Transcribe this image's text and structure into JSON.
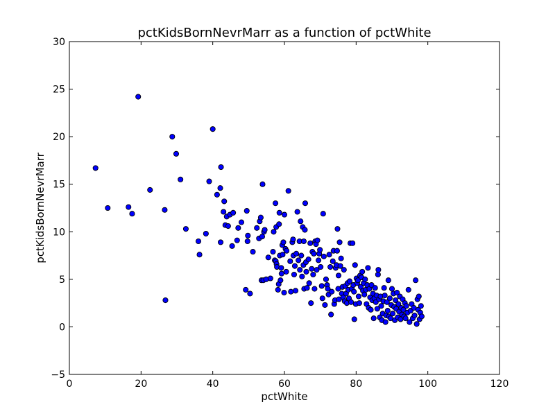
{
  "chart_data": {
    "type": "scatter",
    "title": "pctKidsBornNevrMarr as a function of pctWhite",
    "xlabel": "pctWhite",
    "ylabel": "pctKidsBornNevrMarr",
    "xlim": [
      0,
      120
    ],
    "ylim": [
      -5,
      30
    ],
    "xticks": [
      0,
      20,
      40,
      60,
      80,
      100,
      120
    ],
    "xtick_labels": [
      "0",
      "20",
      "40",
      "60",
      "80",
      "100",
      "120"
    ],
    "yticks": [
      -5,
      0,
      5,
      10,
      15,
      20,
      25,
      30
    ],
    "ytick_labels": [
      "−5",
      "0",
      "5",
      "10",
      "15",
      "20",
      "25",
      "30"
    ],
    "grid": false,
    "marker_color": "#0000ff",
    "marker_edge_color": "#000000",
    "series": [
      {
        "name": "pctKidsBornNevrMarr",
        "points": [
          [
            7.3,
            16.7
          ],
          [
            10.7,
            12.5
          ],
          [
            16.5,
            12.6
          ],
          [
            17.5,
            11.9
          ],
          [
            19.2,
            24.2
          ],
          [
            22.5,
            14.4
          ],
          [
            26.6,
            12.3
          ],
          [
            26.8,
            2.8
          ],
          [
            28.7,
            20.0
          ],
          [
            29.8,
            18.2
          ],
          [
            31.0,
            15.5
          ],
          [
            32.5,
            10.3
          ],
          [
            36.0,
            9.0
          ],
          [
            36.3,
            7.6
          ],
          [
            38.1,
            9.8
          ],
          [
            39.0,
            15.3
          ],
          [
            40.0,
            20.8
          ],
          [
            41.2,
            13.9
          ],
          [
            42.1,
            14.6
          ],
          [
            42.3,
            16.8
          ],
          [
            42.2,
            8.9
          ],
          [
            43.0,
            12.1
          ],
          [
            43.2,
            13.2
          ],
          [
            43.5,
            10.7
          ],
          [
            43.9,
            11.6
          ],
          [
            44.3,
            10.6
          ],
          [
            44.8,
            11.8
          ],
          [
            45.4,
            8.5
          ],
          [
            45.7,
            12.0
          ],
          [
            46.8,
            9.1
          ],
          [
            47.1,
            10.4
          ],
          [
            48.0,
            11.0
          ],
          [
            49.2,
            3.9
          ],
          [
            49.5,
            12.2
          ],
          [
            49.8,
            9.6
          ],
          [
            49.7,
            9.0
          ],
          [
            50.4,
            3.5
          ],
          [
            51.2,
            7.9
          ],
          [
            52.3,
            10.4
          ],
          [
            52.9,
            9.3
          ],
          [
            53.1,
            11.1
          ],
          [
            53.4,
            11.5
          ],
          [
            53.6,
            4.9
          ],
          [
            53.8,
            9.5
          ],
          [
            53.9,
            15.0
          ],
          [
            54.3,
            10.0
          ],
          [
            54.5,
            10.2
          ],
          [
            54.1,
            4.9
          ],
          [
            54.9,
            5.0
          ],
          [
            55.5,
            7.3
          ],
          [
            56.1,
            5.1
          ],
          [
            56.8,
            7.9
          ],
          [
            57.0,
            10.0
          ],
          [
            57.3,
            7.0
          ],
          [
            57.5,
            13.0
          ],
          [
            57.6,
            6.9
          ],
          [
            57.8,
            6.6
          ],
          [
            57.9,
            6.3
          ],
          [
            57.7,
            10.5
          ],
          [
            58.2,
            3.9
          ],
          [
            58.5,
            10.8
          ],
          [
            58.4,
            4.5
          ],
          [
            58.6,
            12.0
          ],
          [
            58.7,
            7.5
          ],
          [
            58.9,
            4.9
          ],
          [
            59.1,
            6.2
          ],
          [
            59.2,
            5.6
          ],
          [
            59.4,
            8.6
          ],
          [
            59.5,
            7.6
          ],
          [
            59.7,
            8.9
          ],
          [
            59.9,
            3.6
          ],
          [
            60.0,
            11.8
          ],
          [
            60.3,
            8.2
          ],
          [
            60.5,
            5.8
          ],
          [
            60.6,
            8.0
          ],
          [
            61.1,
            14.3
          ],
          [
            61.6,
            6.9
          ],
          [
            61.8,
            3.7
          ],
          [
            62.2,
            8.9
          ],
          [
            62.4,
            9.2
          ],
          [
            62.5,
            7.5
          ],
          [
            62.7,
            5.5
          ],
          [
            62.9,
            6.4
          ],
          [
            63.1,
            3.8
          ],
          [
            63.3,
            7.7
          ],
          [
            63.6,
            12.1
          ],
          [
            63.9,
            7.0
          ],
          [
            64.2,
            9.0
          ],
          [
            64.3,
            6.0
          ],
          [
            64.5,
            11.1
          ],
          [
            64.7,
            7.5
          ],
          [
            64.9,
            5.3
          ],
          [
            65.1,
            10.5
          ],
          [
            65.3,
            6.5
          ],
          [
            65.4,
            9.0
          ],
          [
            65.5,
            4.0
          ],
          [
            65.7,
            10.2
          ],
          [
            65.8,
            13.0
          ],
          [
            66.0,
            6.8
          ],
          [
            66.1,
            5.8
          ],
          [
            66.3,
            4.1
          ],
          [
            66.7,
            7.1
          ],
          [
            66.9,
            4.6
          ],
          [
            67.2,
            8.8
          ],
          [
            67.4,
            2.5
          ],
          [
            67.6,
            6.1
          ],
          [
            67.8,
            7.9
          ],
          [
            68.0,
            5.5
          ],
          [
            68.2,
            7.7
          ],
          [
            68.4,
            4.0
          ],
          [
            68.6,
            9.0
          ],
          [
            68.8,
            8.7
          ],
          [
            69.0,
            6.0
          ],
          [
            69.2,
            9.1
          ],
          [
            69.5,
            7.0
          ],
          [
            69.7,
            7.7
          ],
          [
            69.9,
            8.1
          ],
          [
            70.1,
            6.3
          ],
          [
            70.4,
            4.3
          ],
          [
            70.6,
            3.0
          ],
          [
            70.8,
            11.9
          ],
          [
            71.0,
            7.4
          ],
          [
            71.3,
            2.3
          ],
          [
            71.6,
            5.0
          ],
          [
            71.9,
            4.4
          ],
          [
            72.1,
            4.0
          ],
          [
            72.3,
            3.4
          ],
          [
            72.5,
            7.6
          ],
          [
            72.8,
            6.3
          ],
          [
            73.0,
            1.3
          ],
          [
            73.2,
            3.7
          ],
          [
            73.5,
            6.9
          ],
          [
            73.7,
            8.0
          ],
          [
            73.9,
            2.4
          ],
          [
            74.1,
            2.8
          ],
          [
            74.3,
            6.2
          ],
          [
            74.5,
            6.5
          ],
          [
            74.7,
            8.0
          ],
          [
            74.8,
            10.3
          ],
          [
            75.0,
            4.0
          ],
          [
            75.1,
            5.4
          ],
          [
            75.2,
            2.9
          ],
          [
            75.4,
            8.9
          ],
          [
            75.6,
            6.4
          ],
          [
            75.8,
            7.2
          ],
          [
            76.0,
            3.5
          ],
          [
            76.2,
            4.2
          ],
          [
            76.4,
            3.1
          ],
          [
            76.6,
            6.0
          ],
          [
            76.8,
            2.7
          ],
          [
            77.0,
            4.3
          ],
          [
            77.2,
            3.5
          ],
          [
            77.4,
            2.5
          ],
          [
            77.6,
            4.6
          ],
          [
            77.8,
            3.9
          ],
          [
            78.0,
            3.0
          ],
          [
            78.2,
            4.8
          ],
          [
            78.4,
            8.8
          ],
          [
            78.6,
            2.6
          ],
          [
            78.8,
            4.0
          ],
          [
            79.0,
            8.8
          ],
          [
            79.2,
            4.4
          ],
          [
            79.4,
            3.7
          ],
          [
            79.5,
            0.8
          ],
          [
            79.7,
            6.5
          ],
          [
            79.9,
            2.4
          ],
          [
            80.1,
            5.1
          ],
          [
            80.3,
            4.6
          ],
          [
            80.5,
            4.9
          ],
          [
            80.7,
            3.2
          ],
          [
            80.9,
            2.5
          ],
          [
            81.1,
            5.4
          ],
          [
            81.3,
            4.2
          ],
          [
            81.5,
            5.2
          ],
          [
            81.7,
            5.8
          ],
          [
            81.9,
            3.8
          ],
          [
            82.1,
            4.6
          ],
          [
            82.3,
            3.4
          ],
          [
            82.5,
            5.0
          ],
          [
            82.7,
            3.9
          ],
          [
            82.9,
            2.4
          ],
          [
            83.1,
            4.4
          ],
          [
            83.3,
            6.2
          ],
          [
            83.5,
            2.0
          ],
          [
            83.7,
            4.0
          ],
          [
            83.9,
            3.1
          ],
          [
            84.1,
            1.8
          ],
          [
            84.3,
            4.4
          ],
          [
            84.5,
            2.8
          ],
          [
            84.7,
            3.5
          ],
          [
            84.9,
            0.9
          ],
          [
            85.1,
            3.0
          ],
          [
            85.3,
            4.1
          ],
          [
            85.5,
            2.6
          ],
          [
            85.7,
            3.3
          ],
          [
            85.9,
            1.9
          ],
          [
            86.1,
            5.5
          ],
          [
            86.2,
            6.0
          ],
          [
            86.4,
            2.9
          ],
          [
            86.6,
            1.0
          ],
          [
            86.8,
            3.2
          ],
          [
            87.0,
            2.2
          ],
          [
            87.2,
            0.7
          ],
          [
            87.4,
            1.4
          ],
          [
            87.6,
            2.7
          ],
          [
            87.8,
            4.1
          ],
          [
            88.0,
            3.3
          ],
          [
            88.2,
            0.5
          ],
          [
            88.4,
            1.2
          ],
          [
            88.6,
            2.6
          ],
          [
            88.8,
            1.7
          ],
          [
            89.0,
            4.9
          ],
          [
            89.2,
            1.1
          ],
          [
            89.4,
            3.0
          ],
          [
            89.6,
            0.9
          ],
          [
            89.8,
            2.3
          ],
          [
            90.0,
            4.0
          ],
          [
            90.2,
            1.4
          ],
          [
            90.4,
            3.5
          ],
          [
            90.6,
            2.1
          ],
          [
            90.8,
            0.7
          ],
          [
            91.0,
            2.8
          ],
          [
            91.2,
            1.9
          ],
          [
            91.4,
            3.6
          ],
          [
            91.6,
            1.0
          ],
          [
            91.8,
            2.4
          ],
          [
            92.0,
            1.6
          ],
          [
            92.2,
            3.2
          ],
          [
            92.4,
            0.8
          ],
          [
            92.6,
            2.0
          ],
          [
            92.8,
            1.3
          ],
          [
            93.0,
            2.9
          ],
          [
            93.2,
            1.8
          ],
          [
            93.4,
            1.1
          ],
          [
            93.6,
            2.5
          ],
          [
            93.8,
            0.9
          ],
          [
            94.0,
            2.2
          ],
          [
            94.3,
            1.5
          ],
          [
            94.6,
            3.9
          ],
          [
            94.9,
            0.5
          ],
          [
            95.2,
            1.7
          ],
          [
            95.5,
            2.4
          ],
          [
            95.8,
            0.9
          ],
          [
            96.1,
            2.0
          ],
          [
            96.3,
            1.2
          ],
          [
            96.6,
            4.9
          ],
          [
            96.9,
            0.3
          ],
          [
            97.1,
            2.9
          ],
          [
            97.3,
            1.8
          ],
          [
            97.5,
            3.2
          ],
          [
            97.7,
            0.8
          ],
          [
            97.9,
            1.5
          ],
          [
            98.1,
            2.2
          ],
          [
            98.3,
            1.1
          ]
        ]
      }
    ]
  }
}
